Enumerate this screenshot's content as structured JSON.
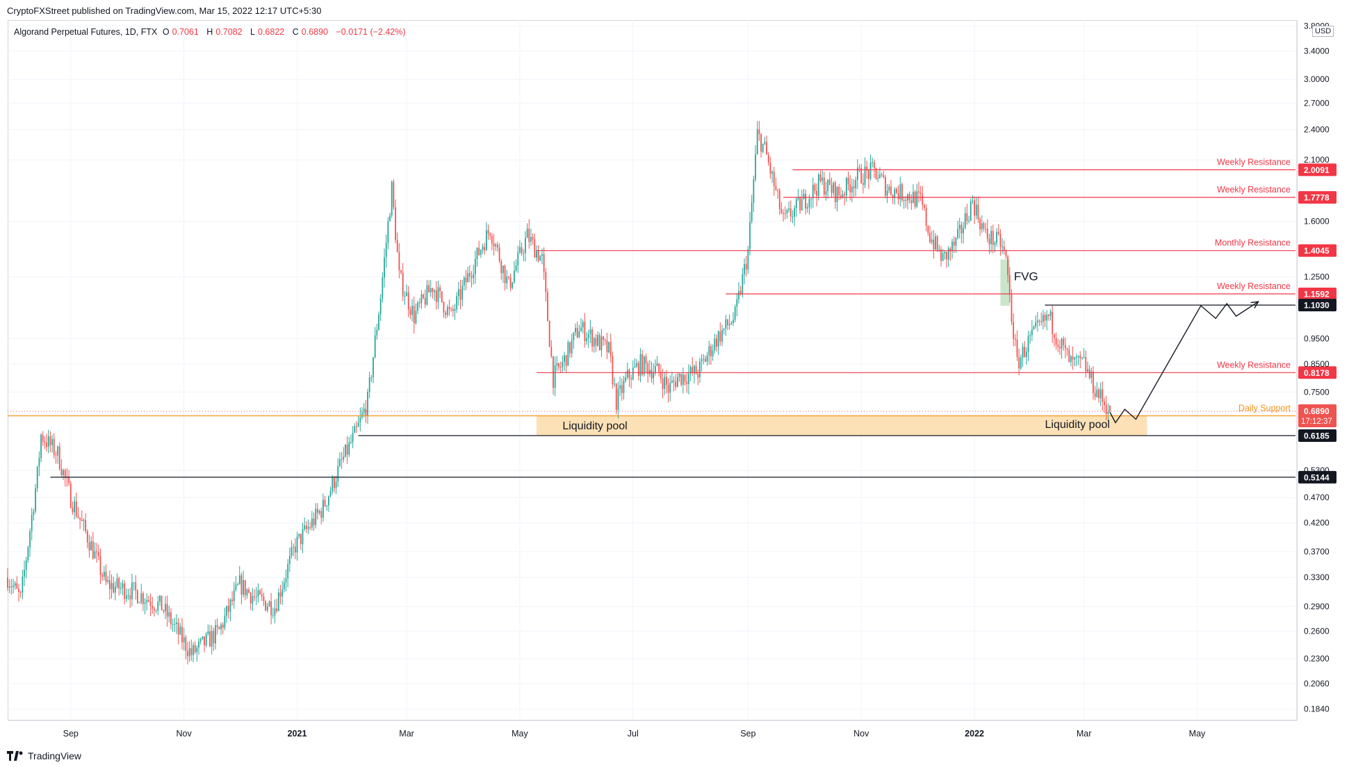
{
  "header": {
    "publisher": "CryptoFXStreet published on TradingView.com, Mar 15, 2022 12:17 UTC+5:30"
  },
  "legend": {
    "title": "Algorand Perpetual Futures, 1D, FTX",
    "open_label": "O",
    "open": "0.7061",
    "high_label": "H",
    "high": "0.7082",
    "low_label": "L",
    "low": "0.6822",
    "close_label": "C",
    "close": "0.6890",
    "change": "−0.0171 (−2.42%)"
  },
  "axis": {
    "currency": "USD",
    "y_ticks": [
      "3.8000",
      "3.4000",
      "3.0000",
      "2.7000",
      "2.4000",
      "2.1000",
      "1.6000",
      "1.2500",
      "0.9500",
      "0.8500",
      "0.7500",
      "0.5300",
      "0.4700",
      "0.4200",
      "0.3700",
      "0.3300",
      "0.2900",
      "0.2600",
      "0.2300",
      "0.2060",
      "0.1840"
    ],
    "x_ticks": [
      "Sep",
      "Nov",
      "2021",
      "Mar",
      "May",
      "Jul",
      "Sep",
      "Nov",
      "2022",
      "Mar",
      "May"
    ]
  },
  "footer": {
    "brand": "TradingView"
  },
  "colors": {
    "up": "#26a69a",
    "down": "#ef5350",
    "resistance": "#f23645",
    "support": "#f7931a",
    "pool": "#fcd9a4",
    "fvg": "#a5d6a7",
    "black": "#131722"
  },
  "chart_data": {
    "type": "candlestick",
    "title": "Algorand Perpetual Futures, 1D, FTX",
    "y_scale": "log",
    "ylim": [
      0.175,
      3.9
    ],
    "x_range": [
      "2020-07-29",
      "2022-06-23"
    ],
    "candles_shown": "daily OHLC, 2020-07-29 to 2022-03-15",
    "path_keypoints": [
      [
        "2020-07-29",
        0.33
      ],
      [
        "2020-08-05",
        0.3
      ],
      [
        "2020-08-14",
        0.52
      ],
      [
        "2020-08-16",
        0.62
      ],
      [
        "2020-08-25",
        0.57
      ],
      [
        "2020-09-01",
        0.47
      ],
      [
        "2020-09-12",
        0.38
      ],
      [
        "2020-09-20",
        0.32
      ],
      [
        "2020-10-05",
        0.31
      ],
      [
        "2020-10-20",
        0.29
      ],
      [
        "2020-11-05",
        0.235
      ],
      [
        "2020-11-20",
        0.26
      ],
      [
        "2020-12-01",
        0.32
      ],
      [
        "2020-12-10",
        0.3
      ],
      [
        "2020-12-20",
        0.29
      ],
      [
        "2020-12-31",
        0.38
      ],
      [
        "2021-01-15",
        0.45
      ],
      [
        "2021-01-25",
        0.55
      ],
      [
        "2021-02-02",
        0.63
      ],
      [
        "2021-02-08",
        0.72
      ],
      [
        "2021-02-15",
        1.15
      ],
      [
        "2021-02-21",
        1.85
      ],
      [
        "2021-02-25",
        1.25
      ],
      [
        "2021-03-05",
        1.05
      ],
      [
        "2021-03-15",
        1.2
      ],
      [
        "2021-03-25",
        1.05
      ],
      [
        "2021-04-05",
        1.3
      ],
      [
        "2021-04-15",
        1.55
      ],
      [
        "2021-04-25",
        1.2
      ],
      [
        "2021-05-05",
        1.5
      ],
      [
        "2021-05-13",
        1.35
      ],
      [
        "2021-05-19",
        0.8
      ],
      [
        "2021-05-24",
        0.85
      ],
      [
        "2021-06-02",
        1.0
      ],
      [
        "2021-06-10",
        0.95
      ],
      [
        "2021-06-18",
        0.9
      ],
      [
        "2021-06-22",
        0.72
      ],
      [
        "2021-06-28",
        0.8
      ],
      [
        "2021-07-05",
        0.85
      ],
      [
        "2021-07-15",
        0.82
      ],
      [
        "2021-07-20",
        0.76
      ],
      [
        "2021-07-25",
        0.8
      ],
      [
        "2021-08-05",
        0.82
      ],
      [
        "2021-08-15",
        0.95
      ],
      [
        "2021-08-25",
        1.05
      ],
      [
        "2021-09-01",
        1.4
      ],
      [
        "2021-09-06",
        2.35
      ],
      [
        "2021-09-10",
        2.2
      ],
      [
        "2021-09-20",
        1.6
      ],
      [
        "2021-10-01",
        1.75
      ],
      [
        "2021-10-10",
        1.9
      ],
      [
        "2021-10-20",
        1.8
      ],
      [
        "2021-10-30",
        1.95
      ],
      [
        "2021-11-08",
        2.0
      ],
      [
        "2021-11-15",
        1.85
      ],
      [
        "2021-11-25",
        1.8
      ],
      [
        "2021-12-03",
        1.75
      ],
      [
        "2021-12-08",
        1.5
      ],
      [
        "2021-12-15",
        1.35
      ],
      [
        "2021-12-22",
        1.45
      ],
      [
        "2021-12-31",
        1.75
      ],
      [
        "2022-01-07",
        1.5
      ],
      [
        "2022-01-15",
        1.45
      ],
      [
        "2022-01-18",
        1.35
      ],
      [
        "2022-01-21",
        1.05
      ],
      [
        "2022-01-24",
        0.85
      ],
      [
        "2022-01-31",
        0.95
      ],
      [
        "2022-02-10",
        1.05
      ],
      [
        "2022-02-15",
        0.95
      ],
      [
        "2022-02-22",
        0.85
      ],
      [
        "2022-03-01",
        0.85
      ],
      [
        "2022-03-07",
        0.76
      ],
      [
        "2022-03-15",
        0.689
      ]
    ],
    "levels": [
      {
        "label": "Weekly Resistance",
        "value": 2.0091,
        "kind": "resistance",
        "start": "2021-09-25"
      },
      {
        "label": "Weekly Resistance",
        "value": 1.7778,
        "kind": "resistance",
        "start": "2021-09-20"
      },
      {
        "label": "Monthly Resistance",
        "value": 1.4045,
        "kind": "resistance",
        "start": "2021-05-10"
      },
      {
        "label": "Weekly Resistance",
        "value": 1.1592,
        "kind": "resistance",
        "start": "2021-08-20"
      },
      {
        "label": "Weekly Resistance",
        "value": 0.8178,
        "kind": "resistance",
        "start": "2021-05-10"
      },
      {
        "label": "Daily Support",
        "value": 0.6753,
        "kind": "support",
        "start": "2020-07-29"
      },
      {
        "label": "",
        "value": 1.103,
        "kind": "black",
        "start": "2022-02-08"
      },
      {
        "label": "",
        "value": 0.6185,
        "kind": "black",
        "start": "2021-02-03"
      },
      {
        "label": "",
        "value": 0.5144,
        "kind": "black",
        "start": "2020-08-21"
      }
    ],
    "current_price": {
      "value": "0.6890",
      "countdown": "17:12:37"
    },
    "annotations": [
      {
        "text": "FVG",
        "x_range": [
          "2022-01-15",
          "2022-01-20"
        ],
        "y_range": [
          1.1,
          1.35
        ]
      },
      {
        "text": "Liquidity pool",
        "x_range": [
          "2021-05-10",
          "2022-04-04"
        ],
        "y_range": [
          0.6185,
          0.6753
        ]
      },
      {
        "text": "Liquidity pool"
      }
    ],
    "projection": [
      [
        "2022-03-15",
        0.686
      ],
      [
        "2022-03-18",
        0.655
      ],
      [
        "2022-03-23",
        0.695
      ],
      [
        "2022-03-29",
        0.665
      ],
      [
        "2022-05-03",
        1.1
      ],
      [
        "2022-05-11",
        1.04
      ],
      [
        "2022-05-17",
        1.11
      ],
      [
        "2022-05-22",
        1.05
      ],
      [
        "2022-06-03",
        1.12
      ]
    ]
  }
}
